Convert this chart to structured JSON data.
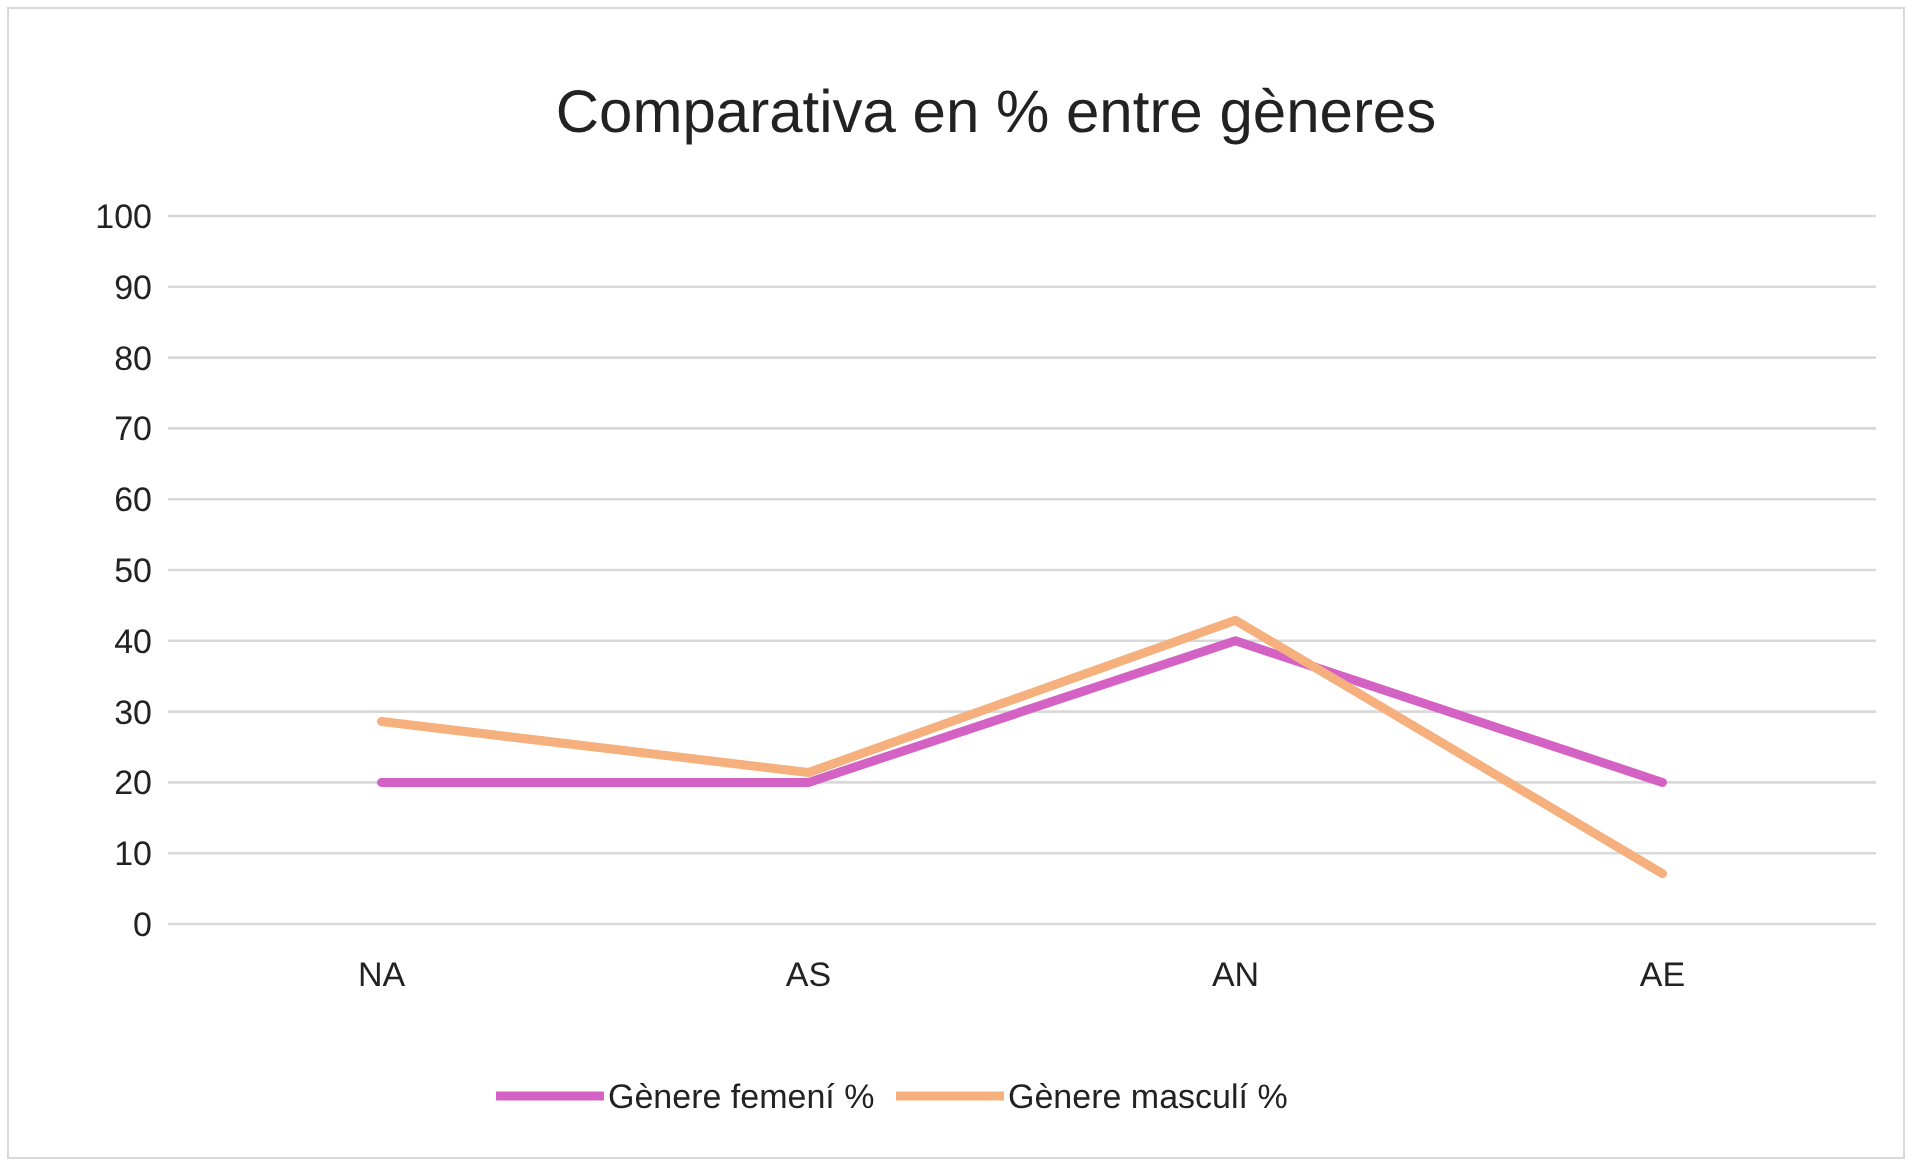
{
  "chart_data": {
    "type": "line",
    "title": "Comparativa en % entre gèneres",
    "categories": [
      "NA",
      "AS",
      "AN",
      "AE"
    ],
    "series": [
      {
        "name": "Gènere femení %",
        "color": "#d462c4",
        "values": [
          20,
          20,
          40,
          20
        ]
      },
      {
        "name": "Gènere masculí %",
        "color": "#f5b07e",
        "values": [
          28.6,
          21.4,
          42.9,
          7.1
        ]
      }
    ],
    "ylim": [
      0,
      100
    ],
    "yticks": [
      0,
      10,
      20,
      30,
      40,
      50,
      60,
      70,
      80,
      90,
      100
    ],
    "grid": "y",
    "legend": "bottom",
    "marker": "none",
    "line_style": "solid"
  }
}
